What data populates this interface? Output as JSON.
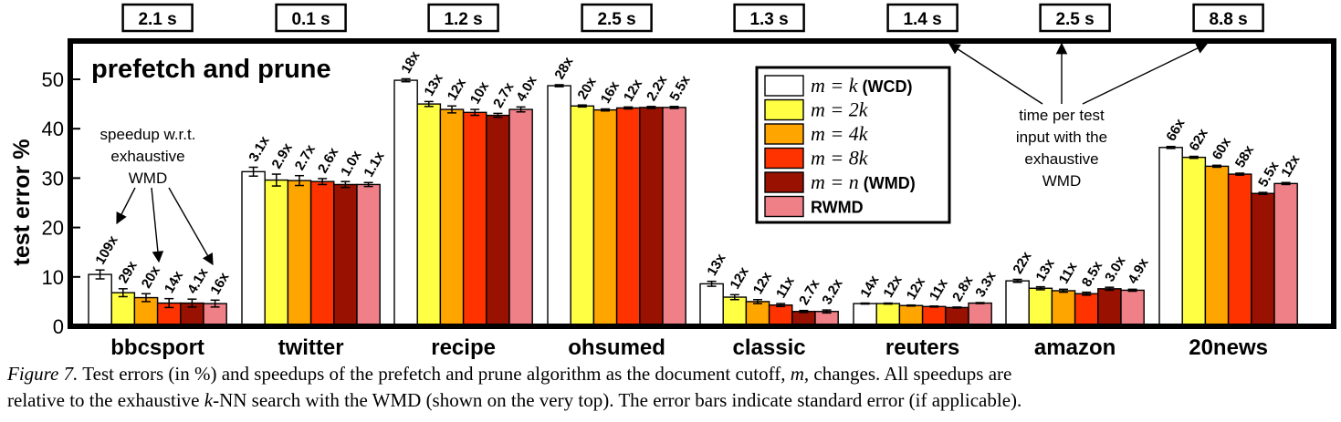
{
  "chart_data": {
    "type": "bar",
    "title": "prefetch and prune",
    "ylabel": "test error %",
    "xlabel": "",
    "ylim": [
      0,
      55
    ],
    "yticks": [
      0,
      10,
      20,
      30,
      40,
      50
    ],
    "grid": false,
    "legend_position": "top-center",
    "categories": [
      "bbcsport",
      "twitter",
      "recipe",
      "ohsumed",
      "classic",
      "reuters",
      "amazon",
      "20news"
    ],
    "wmd_time": [
      "2.1 s",
      "0.1 s",
      "1.2 s",
      "2.5 s",
      "1.3 s",
      "1.4 s",
      "2.5 s",
      "8.8 s"
    ],
    "series": [
      {
        "legend_math": "m = k",
        "legend_bold": " (WCD)",
        "color": "#ffffff",
        "values": [
          10.5,
          31.3,
          49.8,
          48.7,
          8.6,
          4.6,
          9.2,
          36.2
        ],
        "errors": [
          0.9,
          0.9,
          0.3,
          0.2,
          0.5,
          0.1,
          0.3,
          0.2
        ],
        "speedups": [
          "109x",
          "3.1x",
          "18x",
          "28x",
          "13x",
          "14x",
          "22x",
          "66x"
        ]
      },
      {
        "legend_math": "m = 2k",
        "legend_bold": "",
        "color": "#ffff44",
        "values": [
          6.8,
          29.6,
          45.0,
          44.6,
          5.9,
          4.6,
          7.7,
          34.2
        ],
        "errors": [
          0.8,
          1.2,
          0.5,
          0.2,
          0.5,
          0.1,
          0.3,
          0.2
        ],
        "speedups": [
          "29x",
          "2.9x",
          "13x",
          "20x",
          "12x",
          "12x",
          "13x",
          "62x"
        ]
      },
      {
        "legend_math": "m = 4k",
        "legend_bold": "",
        "color": "#ffa500",
        "values": [
          5.8,
          29.5,
          43.9,
          43.8,
          5.0,
          4.2,
          7.2,
          32.4
        ],
        "errors": [
          0.8,
          1.0,
          0.7,
          0.2,
          0.4,
          0.1,
          0.3,
          0.2
        ],
        "speedups": [
          "20x",
          "2.7x",
          "12x",
          "16x",
          "12x",
          "12x",
          "11x",
          "60x"
        ]
      },
      {
        "legend_math": "m = 8k",
        "legend_bold": "",
        "color": "#ff3300",
        "values": [
          4.7,
          29.3,
          43.3,
          44.2,
          4.3,
          4.0,
          6.6,
          30.8
        ],
        "errors": [
          0.9,
          0.6,
          0.6,
          0.2,
          0.3,
          0.1,
          0.3,
          0.2
        ],
        "speedups": [
          "14x",
          "2.6x",
          "10x",
          "12x",
          "11x",
          "11x",
          "8.5x",
          "58x"
        ]
      },
      {
        "legend_math": "m = n",
        "legend_bold": " (WMD)",
        "color": "#991100",
        "values": [
          4.7,
          28.7,
          42.7,
          44.3,
          3.0,
          3.8,
          7.6,
          26.9
        ],
        "errors": [
          0.8,
          0.6,
          0.4,
          0.2,
          0.2,
          0.1,
          0.3,
          0.2
        ],
        "speedups": [
          "4.1x",
          "1.0x",
          "2.7x",
          "2.2x",
          "2.7x",
          "2.8x",
          "3.0x",
          "5.5x"
        ]
      },
      {
        "legend_math": "",
        "legend_bold": "RWMD",
        "color": "#f08088",
        "values": [
          4.6,
          28.7,
          43.9,
          44.3,
          3.0,
          4.7,
          7.3,
          28.9
        ],
        "errors": [
          0.7,
          0.4,
          0.5,
          0.2,
          0.3,
          0.1,
          0.2,
          0.2
        ],
        "speedups": [
          "16x",
          "1.1x",
          "4.0x",
          "5.5x",
          "3.2x",
          "3.3x",
          "4.9x",
          "12x"
        ]
      }
    ],
    "annotations": {
      "speedup_note": [
        "speedup w.r.t.",
        "exhaustive",
        "WMD"
      ],
      "time_note": [
        "time per test",
        "input with the",
        "exhaustive",
        "WMD"
      ]
    }
  },
  "caption": {
    "figure_label": "Figure 7.",
    "line1_a": " Test errors (in %) and speedups of the prefetch and prune algorithm as the document cutoff, ",
    "line1_math": "m",
    "line1_b": ", changes.  All speedups are",
    "line2_a": "relative to the exhaustive ",
    "line2_math": "k",
    "line2_b": "-NN search with the WMD (shown on the very top). The error bars indicate standard error (if applicable)."
  }
}
